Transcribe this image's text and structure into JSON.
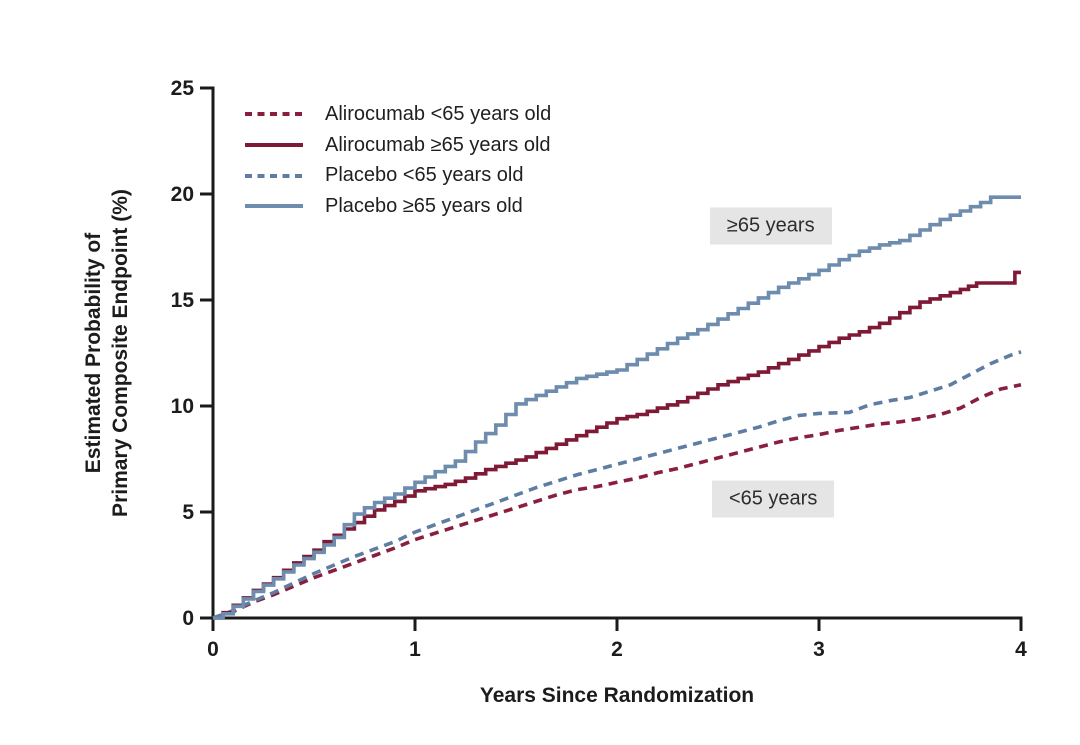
{
  "chart_data": {
    "type": "line",
    "title": "",
    "xlabel": "Years Since Randomization",
    "ylabel_lines": [
      "Estimated Probability of",
      "Primary Composite Endpoint (%)"
    ],
    "xlim": [
      0,
      4
    ],
    "ylim": [
      0,
      25
    ],
    "x_ticks": [
      "0",
      "1",
      "2",
      "3",
      "4"
    ],
    "y_ticks": [
      "0",
      "5",
      "10",
      "15",
      "20",
      "25"
    ],
    "grid": false,
    "legend_position": "top-left-inside",
    "annotations": [
      {
        "text": "≥65 years",
        "x": 2.46,
        "y": 18.5
      },
      {
        "text": "<65 years",
        "x": 2.47,
        "y": 5.6
      }
    ],
    "series": [
      {
        "id": "alirocumab-lt65",
        "label": "Alirocumab <65 years old",
        "color": "#8A1F3D",
        "dash": true,
        "step": false,
        "points": [
          [
            0,
            0
          ],
          [
            0.1,
            0.3
          ],
          [
            0.2,
            0.75
          ],
          [
            0.3,
            1.1
          ],
          [
            0.4,
            1.5
          ],
          [
            0.5,
            1.9
          ],
          [
            0.6,
            2.25
          ],
          [
            0.7,
            2.6
          ],
          [
            0.8,
            2.95
          ],
          [
            0.9,
            3.3
          ],
          [
            1,
            3.7
          ],
          [
            1.1,
            4
          ],
          [
            1.2,
            4.3
          ],
          [
            1.3,
            4.6
          ],
          [
            1.4,
            4.9
          ],
          [
            1.5,
            5.2
          ],
          [
            1.6,
            5.5
          ],
          [
            1.7,
            5.8
          ],
          [
            1.8,
            6.05
          ],
          [
            1.9,
            6.2
          ],
          [
            2,
            6.4
          ],
          [
            2.1,
            6.6
          ],
          [
            2.2,
            6.85
          ],
          [
            2.3,
            7.05
          ],
          [
            2.4,
            7.3
          ],
          [
            2.5,
            7.55
          ],
          [
            2.6,
            7.8
          ],
          [
            2.7,
            8.05
          ],
          [
            2.8,
            8.3
          ],
          [
            2.9,
            8.5
          ],
          [
            3,
            8.65
          ],
          [
            3.1,
            8.85
          ],
          [
            3.2,
            9
          ],
          [
            3.3,
            9.15
          ],
          [
            3.4,
            9.25
          ],
          [
            3.5,
            9.4
          ],
          [
            3.6,
            9.6
          ],
          [
            3.7,
            9.9
          ],
          [
            3.8,
            10.4
          ],
          [
            3.9,
            10.8
          ],
          [
            4,
            11
          ]
        ]
      },
      {
        "id": "alirocumab-ge65",
        "label": "Alirocumab ≥65 years old",
        "color": "#7E1A36",
        "dash": false,
        "step": true,
        "points": [
          [
            0,
            0
          ],
          [
            0.05,
            0.25
          ],
          [
            0.1,
            0.6
          ],
          [
            0.15,
            0.95
          ],
          [
            0.2,
            1.3
          ],
          [
            0.3,
            1.9
          ],
          [
            0.4,
            2.6
          ],
          [
            0.5,
            3.2
          ],
          [
            0.55,
            3.6
          ],
          [
            0.6,
            3.9
          ],
          [
            0.7,
            4.5
          ],
          [
            0.75,
            4.8
          ],
          [
            0.8,
            5.1
          ],
          [
            0.9,
            5.5
          ],
          [
            1,
            6
          ],
          [
            1.1,
            6.2
          ],
          [
            1.15,
            6.3
          ],
          [
            1.25,
            6.6
          ],
          [
            1.35,
            7
          ],
          [
            1.45,
            7.3
          ],
          [
            1.55,
            7.6
          ],
          [
            1.65,
            8
          ],
          [
            1.75,
            8.4
          ],
          [
            1.85,
            8.8
          ],
          [
            1.95,
            9.2
          ],
          [
            2,
            9.4
          ],
          [
            2.1,
            9.6
          ],
          [
            2.2,
            9.9
          ],
          [
            2.3,
            10.2
          ],
          [
            2.4,
            10.6
          ],
          [
            2.5,
            11
          ],
          [
            2.6,
            11.3
          ],
          [
            2.7,
            11.6
          ],
          [
            2.8,
            12
          ],
          [
            2.9,
            12.4
          ],
          [
            3,
            12.8
          ],
          [
            3.1,
            13.2
          ],
          [
            3.2,
            13.5
          ],
          [
            3.3,
            13.9
          ],
          [
            3.4,
            14.4
          ],
          [
            3.5,
            14.9
          ],
          [
            3.6,
            15.2
          ],
          [
            3.7,
            15.5
          ],
          [
            3.78,
            15.8
          ],
          [
            3.95,
            15.8
          ],
          [
            3.97,
            16.3
          ],
          [
            4,
            16.3
          ]
        ]
      },
      {
        "id": "placebo-lt65",
        "label": "Placebo <65 years old",
        "color": "#5E7DA3",
        "dash": true,
        "step": false,
        "points": [
          [
            0,
            0
          ],
          [
            0.1,
            0.35
          ],
          [
            0.2,
            0.8
          ],
          [
            0.3,
            1.2
          ],
          [
            0.4,
            1.65
          ],
          [
            0.5,
            2.1
          ],
          [
            0.6,
            2.5
          ],
          [
            0.7,
            2.9
          ],
          [
            0.8,
            3.25
          ],
          [
            0.9,
            3.6
          ],
          [
            1,
            4.05
          ],
          [
            1.1,
            4.4
          ],
          [
            1.2,
            4.75
          ],
          [
            1.3,
            5.1
          ],
          [
            1.4,
            5.45
          ],
          [
            1.5,
            5.8
          ],
          [
            1.6,
            6.15
          ],
          [
            1.7,
            6.45
          ],
          [
            1.8,
            6.75
          ],
          [
            1.9,
            7
          ],
          [
            2,
            7.25
          ],
          [
            2.1,
            7.5
          ],
          [
            2.2,
            7.75
          ],
          [
            2.3,
            8
          ],
          [
            2.4,
            8.25
          ],
          [
            2.5,
            8.5
          ],
          [
            2.6,
            8.75
          ],
          [
            2.7,
            9
          ],
          [
            2.8,
            9.3
          ],
          [
            2.9,
            9.55
          ],
          [
            3,
            9.65
          ],
          [
            3.15,
            9.7
          ],
          [
            3.25,
            10.05
          ],
          [
            3.35,
            10.25
          ],
          [
            3.45,
            10.4
          ],
          [
            3.55,
            10.7
          ],
          [
            3.65,
            11
          ],
          [
            3.75,
            11.5
          ],
          [
            3.85,
            12
          ],
          [
            3.95,
            12.4
          ],
          [
            4,
            12.55
          ]
        ]
      },
      {
        "id": "placebo-ge65",
        "label": "Placebo ≥65 years old",
        "color": "#6D8CAE",
        "dash": false,
        "step": true,
        "points": [
          [
            0,
            0
          ],
          [
            0.05,
            0.2
          ],
          [
            0.1,
            0.55
          ],
          [
            0.15,
            0.9
          ],
          [
            0.2,
            1.25
          ],
          [
            0.3,
            1.85
          ],
          [
            0.4,
            2.5
          ],
          [
            0.5,
            3.1
          ],
          [
            0.6,
            3.8
          ],
          [
            0.65,
            4.4
          ],
          [
            0.7,
            4.9
          ],
          [
            0.75,
            5.2
          ],
          [
            0.8,
            5.45
          ],
          [
            0.9,
            5.85
          ],
          [
            1,
            6.4
          ],
          [
            1.1,
            6.9
          ],
          [
            1.2,
            7.4
          ],
          [
            1.3,
            8.3
          ],
          [
            1.4,
            9.1
          ],
          [
            1.45,
            9.6
          ],
          [
            1.5,
            10.1
          ],
          [
            1.6,
            10.5
          ],
          [
            1.7,
            10.9
          ],
          [
            1.8,
            11.3
          ],
          [
            1.9,
            11.5
          ],
          [
            2,
            11.7
          ],
          [
            2.1,
            12.2
          ],
          [
            2.2,
            12.7
          ],
          [
            2.3,
            13.2
          ],
          [
            2.4,
            13.6
          ],
          [
            2.5,
            14.1
          ],
          [
            2.6,
            14.6
          ],
          [
            2.7,
            15.1
          ],
          [
            2.8,
            15.6
          ],
          [
            2.9,
            16
          ],
          [
            3,
            16.4
          ],
          [
            3.1,
            16.9
          ],
          [
            3.2,
            17.3
          ],
          [
            3.3,
            17.6
          ],
          [
            3.4,
            17.8
          ],
          [
            3.5,
            18.3
          ],
          [
            3.6,
            18.8
          ],
          [
            3.7,
            19.2
          ],
          [
            3.8,
            19.6
          ],
          [
            3.85,
            19.85
          ],
          [
            4,
            19.85
          ]
        ]
      }
    ]
  },
  "colors": {
    "axis": "#1a1a1a",
    "text": "#1c1c1c",
    "annotation_bg": "#e5e5e5",
    "background": "#ffffff"
  }
}
